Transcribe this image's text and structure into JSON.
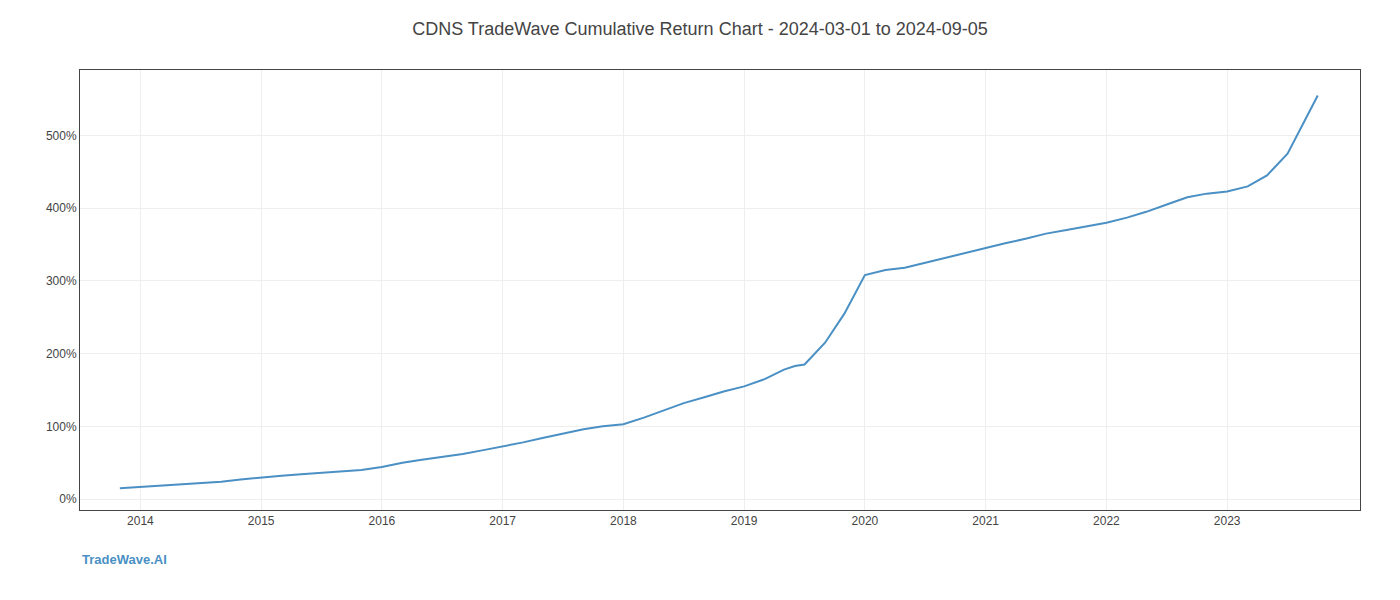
{
  "chart_data": {
    "type": "line",
    "title": "CDNS TradeWave Cumulative Return Chart - 2024-03-01 to 2024-09-05",
    "annotations": [
      {
        "text": "TradeWave.AI",
        "color": "#4a90c4"
      }
    ],
    "color": "#4a90c4",
    "grid": true,
    "xlim": [
      2013.5,
      2024.1
    ],
    "xticks": [
      2014,
      2015,
      2016,
      2017,
      2018,
      2019,
      2020,
      2021,
      2022,
      2023
    ],
    "ylim": [
      -15,
      590
    ],
    "yticks": [
      {
        "value": 0,
        "label": "0%"
      },
      {
        "value": 100,
        "label": "100%"
      },
      {
        "value": 200,
        "label": "200%"
      },
      {
        "value": 300,
        "label": "300%"
      },
      {
        "value": 400,
        "label": "400%"
      },
      {
        "value": 500,
        "label": "500%"
      }
    ],
    "x": [
      2013.83,
      2014.0,
      2014.17,
      2014.33,
      2014.5,
      2014.67,
      2014.83,
      2015.0,
      2015.17,
      2015.33,
      2015.5,
      2015.67,
      2015.83,
      2016.0,
      2016.17,
      2016.33,
      2016.5,
      2016.67,
      2016.83,
      2017.0,
      2017.17,
      2017.33,
      2017.5,
      2017.67,
      2017.83,
      2018.0,
      2018.17,
      2018.33,
      2018.5,
      2018.67,
      2018.83,
      2019.0,
      2019.17,
      2019.33,
      2019.42,
      2019.5,
      2019.67,
      2019.83,
      2020.0,
      2020.17,
      2020.33,
      2020.5,
      2020.67,
      2020.83,
      2021.0,
      2021.17,
      2021.33,
      2021.5,
      2021.67,
      2021.83,
      2022.0,
      2022.17,
      2022.33,
      2022.5,
      2022.67,
      2022.83,
      2023.0,
      2023.17,
      2023.33,
      2023.5,
      2023.67,
      2023.75
    ],
    "values": [
      15,
      17,
      19,
      21,
      22,
      24,
      27,
      30,
      32,
      34,
      36,
      38,
      40,
      44,
      50,
      54,
      58,
      62,
      67,
      72,
      78,
      84,
      90,
      96,
      100,
      103,
      112,
      122,
      132,
      140,
      148,
      155,
      165,
      178,
      183,
      185,
      215,
      255,
      308,
      315,
      318,
      325,
      332,
      338,
      345,
      352,
      358,
      365,
      370,
      375,
      380,
      387,
      395,
      405,
      415,
      420,
      423,
      430,
      445,
      475,
      530,
      555
    ]
  }
}
